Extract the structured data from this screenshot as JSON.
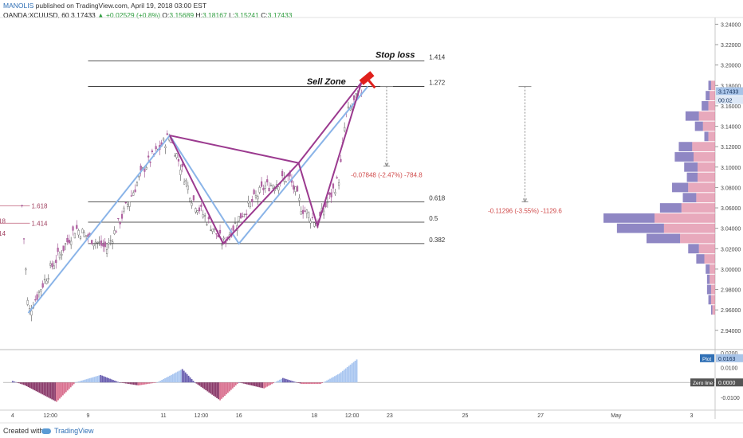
{
  "header": {
    "author": "MANOLIS",
    "published": "published on TradingView.com, April 19, 2018 03:00 EST",
    "symbol": "OANDA:XCUUSD, 60",
    "last": "3.17433",
    "change": "+0.02529 (+0.8%)",
    "ohlc": {
      "o": "3.15689",
      "h": "3.18167",
      "l": "3.15241",
      "c": "3.17433"
    }
  },
  "footer": {
    "created": "Created with",
    "brand": "TradingView"
  },
  "chart_data": {
    "type": "line",
    "ylim": [
      2.925,
      3.245
    ],
    "yticks": [
      "3.24000",
      "3.22000",
      "3.20000",
      "3.18000",
      "3.16000",
      "3.14000",
      "3.12000",
      "3.10000",
      "3.08000",
      "3.06000",
      "3.04000",
      "3.02000",
      "3.00000",
      "2.98000",
      "2.96000",
      "2.94000"
    ],
    "ytick_values": [
      3.24,
      3.22,
      3.2,
      3.18,
      3.16,
      3.14,
      3.12,
      3.1,
      3.08,
      3.06,
      3.04,
      3.02,
      3.0,
      2.98,
      2.96,
      2.94
    ],
    "xticks": [
      "4",
      "12:00",
      "9",
      "11",
      "12:00",
      "16",
      "18",
      "12:00",
      "23",
      "25",
      "27",
      "May",
      "3"
    ],
    "xtick_values": [
      0,
      12,
      24,
      48,
      60,
      72,
      96,
      108,
      120,
      144,
      168,
      192,
      216
    ],
    "xlim": [
      -3.0,
      223.5
    ],
    "price_badge": "3.17433",
    "time_badge": "00:02",
    "drawings": {
      "fib_levels": [
        {
          "label": "1.414",
          "price": 3.204
        },
        {
          "label": "1.272",
          "price": 3.179
        },
        {
          "label": "0.618",
          "price": 3.066
        },
        {
          "label": "0.5",
          "price": 3.046
        },
        {
          "label": "0.382",
          "price": 3.025
        }
      ],
      "prior_fib": [
        {
          "label": "1.618",
          "price": 3.062
        },
        {
          "label": "1.414",
          "price": 3.045
        }
      ],
      "prior_fib_partial": [
        {
          "label": "18",
          "price": 3.047
        },
        {
          "label": "14",
          "price": 3.035
        }
      ],
      "bat_pattern": {
        "x": [
          50,
          67,
          91,
          97,
          111
        ],
        "y": [
          3.131,
          3.025,
          3.104,
          3.042,
          3.183
        ]
      },
      "blue_abcd": {
        "x": [
          5,
          50,
          72,
          113
        ],
        "y": [
          2.957,
          3.131,
          3.025,
          3.179
        ]
      },
      "stop_loss": "Stop loss",
      "sell_zone": "Sell Zone",
      "measure1": "-0.07848 (-2.47%) -784.8",
      "measure2": "-0.11296 (-3.55%) -1129.6",
      "measure1_range": {
        "x": 119,
        "from": 3.179,
        "to": 3.101
      },
      "measure2_range": {
        "x": 163,
        "from": 3.179,
        "to": 3.066
      }
    },
    "volume_profile": [
      {
        "price": 3.18,
        "sell": 2,
        "buy": 3
      },
      {
        "price": 3.17,
        "sell": 3,
        "buy": 4
      },
      {
        "price": 3.16,
        "sell": 5,
        "buy": 5
      },
      {
        "price": 3.15,
        "sell": 10,
        "buy": 12
      },
      {
        "price": 3.14,
        "sell": 6,
        "buy": 9
      },
      {
        "price": 3.13,
        "sell": 3,
        "buy": 5
      },
      {
        "price": 3.12,
        "sell": 10,
        "buy": 17
      },
      {
        "price": 3.11,
        "sell": 14,
        "buy": 16
      },
      {
        "price": 3.1,
        "sell": 10,
        "buy": 13
      },
      {
        "price": 3.09,
        "sell": 8,
        "buy": 13
      },
      {
        "price": 3.08,
        "sell": 12,
        "buy": 20
      },
      {
        "price": 3.07,
        "sell": 10,
        "buy": 14
      },
      {
        "price": 3.06,
        "sell": 16,
        "buy": 25
      },
      {
        "price": 3.05,
        "sell": 38,
        "buy": 45
      },
      {
        "price": 3.04,
        "sell": 35,
        "buy": 38
      },
      {
        "price": 3.03,
        "sell": 25,
        "buy": 26
      },
      {
        "price": 3.02,
        "sell": 8,
        "buy": 12
      },
      {
        "price": 3.01,
        "sell": 6,
        "buy": 8
      },
      {
        "price": 3.0,
        "sell": 3,
        "buy": 4
      },
      {
        "price": 2.99,
        "sell": 2,
        "buy": 4
      },
      {
        "price": 2.98,
        "sell": 3,
        "buy": 3
      },
      {
        "price": 2.97,
        "sell": 2,
        "buy": 3
      },
      {
        "price": 2.96,
        "sell": 1,
        "buy": 2
      }
    ],
    "indicator": {
      "ylim": [
        -0.017,
        0.021
      ],
      "yticks": [
        "0.0200",
        "0.0100",
        "-0.0100"
      ],
      "ytick_values": [
        0.02,
        0.01,
        -0.01
      ],
      "plot_label": "Plot",
      "plot_value": "0.0163",
      "zero_label": "Zero line",
      "zero_value": "0.0000",
      "segments": [
        {
          "x": [
            0,
            4
          ],
          "v": [
            0.001,
            -0.002
          ]
        },
        {
          "x": [
            4,
            14
          ],
          "v": [
            -0.002,
            -0.013
          ]
        },
        {
          "x": [
            14,
            20
          ],
          "v": [
            -0.013,
            0.0
          ]
        },
        {
          "x": [
            20,
            28
          ],
          "v": [
            0.0,
            0.005
          ]
        },
        {
          "x": [
            28,
            34
          ],
          "v": [
            0.005,
            0.0
          ]
        },
        {
          "x": [
            34,
            40
          ],
          "v": [
            0.0,
            -0.002
          ]
        },
        {
          "x": [
            40,
            46
          ],
          "v": [
            -0.002,
            0.0
          ]
        },
        {
          "x": [
            46,
            54
          ],
          "v": [
            0.0,
            0.009
          ]
        },
        {
          "x": [
            54,
            58
          ],
          "v": [
            0.009,
            0.0
          ]
        },
        {
          "x": [
            58,
            66
          ],
          "v": [
            0.0,
            -0.012
          ]
        },
        {
          "x": [
            66,
            72
          ],
          "v": [
            -0.012,
            0.0
          ]
        },
        {
          "x": [
            72,
            80
          ],
          "v": [
            0.0,
            -0.004
          ]
        },
        {
          "x": [
            80,
            86
          ],
          "v": [
            -0.004,
            0.003
          ]
        },
        {
          "x": [
            86,
            92
          ],
          "v": [
            0.003,
            -0.001
          ]
        },
        {
          "x": [
            92,
            98
          ],
          "v": [
            -0.001,
            -0.001
          ]
        },
        {
          "x": [
            98,
            104
          ],
          "v": [
            -0.001,
            0.006
          ]
        },
        {
          "x": [
            104,
            110
          ],
          "v": [
            0.006,
            0.0163
          ]
        }
      ]
    }
  }
}
